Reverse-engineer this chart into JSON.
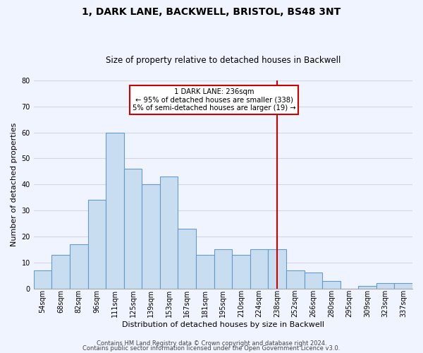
{
  "title": "1, DARK LANE, BACKWELL, BRISTOL, BS48 3NT",
  "subtitle": "Size of property relative to detached houses in Backwell",
  "xlabel": "Distribution of detached houses by size in Backwell",
  "ylabel": "Number of detached properties",
  "bar_color": "#c8ddf0",
  "bar_edge_color": "#6699cc",
  "categories": [
    "54sqm",
    "68sqm",
    "82sqm",
    "96sqm",
    "111sqm",
    "125sqm",
    "139sqm",
    "153sqm",
    "167sqm",
    "181sqm",
    "195sqm",
    "210sqm",
    "224sqm",
    "238sqm",
    "252sqm",
    "266sqm",
    "280sqm",
    "295sqm",
    "309sqm",
    "323sqm",
    "337sqm"
  ],
  "values": [
    7,
    13,
    17,
    34,
    60,
    46,
    40,
    43,
    23,
    13,
    15,
    13,
    15,
    15,
    7,
    6,
    3,
    0,
    1,
    2,
    2
  ],
  "ylim": [
    0,
    80
  ],
  "yticks": [
    0,
    10,
    20,
    30,
    40,
    50,
    60,
    70,
    80
  ],
  "vline_idx": 13,
  "vline_color": "#cc0000",
  "annotation_title": "1 DARK LANE: 236sqm",
  "annotation_line1": "← 95% of detached houses are smaller (338)",
  "annotation_line2": "5% of semi-detached houses are larger (19) →",
  "annotation_box_color": "#ffffff",
  "annotation_box_edge": "#cc0000",
  "footer1": "Contains HM Land Registry data © Crown copyright and database right 2024.",
  "footer2": "Contains public sector information licensed under the Open Government Licence v3.0.",
  "background_color": "#f0f4ff",
  "grid_color": "#d0d8e8",
  "title_fontsize": 10,
  "subtitle_fontsize": 8.5,
  "xlabel_fontsize": 8,
  "ylabel_fontsize": 8,
  "tick_fontsize": 7,
  "footer_fontsize": 6
}
